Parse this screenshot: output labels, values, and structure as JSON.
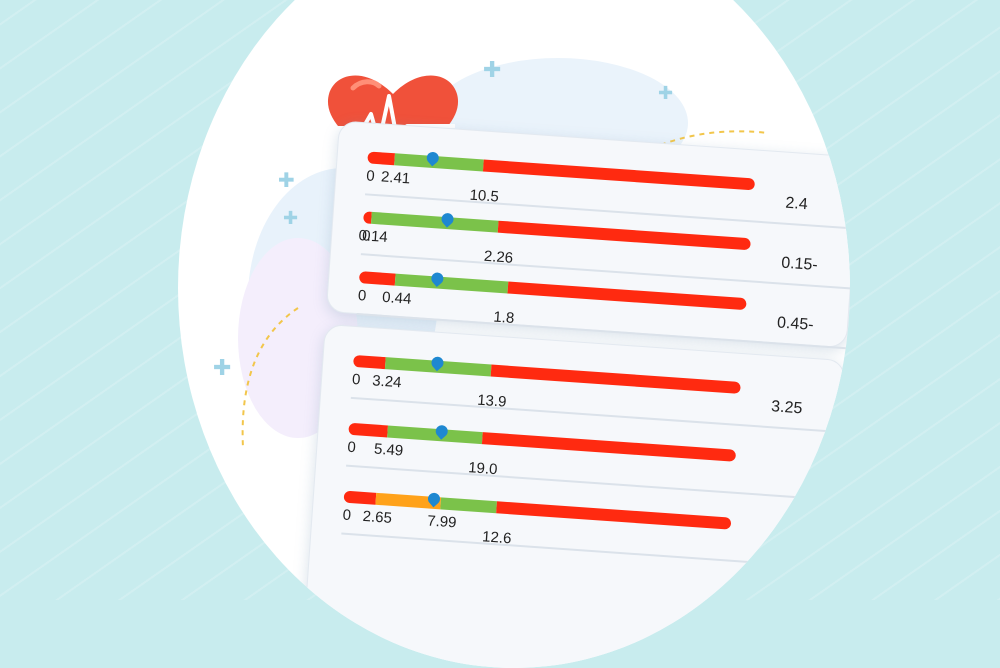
{
  "colors": {
    "background": "#c8ecee",
    "circle": "#ffffff",
    "heart": "#f0513a",
    "marker": "#1e88d1",
    "red": "#ff2a10",
    "green": "#7bc24a",
    "orange": "#ffa21a"
  },
  "icons": [
    "heart-pulse-icon",
    "marker-pin-icon",
    "plus-icon",
    "sparkle-icon"
  ],
  "rows": [
    {
      "ticks": [
        "0",
        "2.41",
        "10.5"
      ],
      "stops": [
        0,
        2.41,
        10.5,
        35
      ],
      "colors": [
        "red",
        "green",
        "red"
      ],
      "marker": 5.9,
      "right_value": "2.4"
    },
    {
      "ticks": [
        "0",
        "0.14",
        "2.26"
      ],
      "stops": [
        0,
        0.14,
        2.26,
        6.5
      ],
      "colors": [
        "red",
        "green",
        "red"
      ],
      "marker": 1.4,
      "right_value": "0.15-"
    },
    {
      "ticks": [
        "0",
        "0.44",
        "1.8"
      ],
      "stops": [
        0,
        0.44,
        1.8,
        4.7
      ],
      "colors": [
        "red",
        "green",
        "red"
      ],
      "marker": 0.95,
      "right_value": "0.45-"
    },
    {
      "ticks": [
        "0",
        "3.24",
        "13.9"
      ],
      "stops": [
        0,
        3.24,
        13.9,
        39
      ],
      "colors": [
        "red",
        "green",
        "red"
      ],
      "marker": 8.4,
      "right_value": "3.25"
    },
    {
      "ticks": [
        "0",
        "5.49",
        "19.0"
      ],
      "stops": [
        0,
        5.49,
        19.0,
        55
      ],
      "colors": [
        "red",
        "green",
        "red"
      ],
      "marker": 13.2,
      "right_value": ""
    },
    {
      "ticks": [
        "0",
        "2.65",
        "7.99",
        "12.6"
      ],
      "stops": [
        0,
        2.65,
        7.99,
        12.6,
        32
      ],
      "colors": [
        "red",
        "orange",
        "green",
        "red"
      ],
      "marker": 7.4,
      "right_value": ""
    }
  ]
}
